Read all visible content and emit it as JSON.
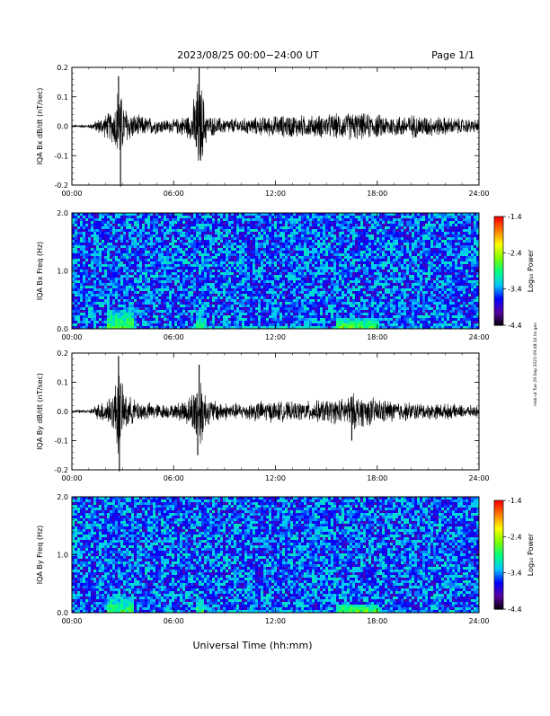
{
  "header": {
    "title": "2023/08/25  00:00−24:00 UT",
    "page": "Page 1/1"
  },
  "xlabel": "Universal Time (hh:mm)",
  "side_note": "mkk-ut Tue 29 Sep 2023 09:48:14 hs gen",
  "time_ticks": [
    "00:00",
    "06:00",
    "12:00",
    "18:00",
    "24:00"
  ],
  "colorbar": {
    "label": "Log₁₀ Power",
    "ticks": [
      "-1.4",
      "-2.4",
      "-3.4",
      "-4.4"
    ],
    "range": [
      -4.4,
      -1.4
    ],
    "colors": [
      "#000000",
      "#5a00a0",
      "#0000ff",
      "#00c8ff",
      "#00ff80",
      "#80ff00",
      "#ffff00",
      "#ff8000",
      "#ff0000"
    ]
  },
  "chart_data": [
    {
      "type": "line",
      "ylabel": "IQA Bx dB/dt (nT/sec)",
      "yticks": [
        "0.2",
        "0.1",
        "0.0",
        "-0.1",
        "-0.2"
      ],
      "ylim": [
        -0.2,
        0.2
      ],
      "xlim": [
        "00:00",
        "24:00"
      ],
      "x": [
        "00:00",
        "01:00",
        "02:00",
        "02:30",
        "02:45",
        "03:00",
        "03:30",
        "04:00",
        "05:00",
        "06:00",
        "07:00",
        "07:30",
        "08:00",
        "09:00",
        "10:00",
        "11:00",
        "12:00",
        "13:00",
        "14:00",
        "15:00",
        "16:00",
        "16:30",
        "17:00",
        "18:00",
        "19:00",
        "20:00",
        "21:00",
        "22:00",
        "23:00",
        "24:00"
      ],
      "envelope": [
        0.005,
        0.006,
        0.045,
        0.07,
        0.17,
        0.09,
        0.05,
        0.04,
        0.03,
        0.025,
        0.05,
        0.2,
        0.04,
        0.03,
        0.03,
        0.035,
        0.04,
        0.045,
        0.04,
        0.045,
        0.05,
        0.055,
        0.05,
        0.045,
        0.04,
        0.045,
        0.04,
        0.035,
        0.03,
        0.025
      ],
      "spikes": [
        {
          "x": "02:45",
          "y": 0.17
        },
        {
          "x": "02:52",
          "y": -0.21
        },
        {
          "x": "07:30",
          "y": 0.2
        },
        {
          "x": "07:20",
          "y": -0.07
        }
      ]
    },
    {
      "type": "heatmap",
      "ylabel": "IQA Bx Freq (Hz)",
      "yticks": [
        "2.0",
        "1.0",
        "0.0"
      ],
      "ylim": [
        0,
        2
      ],
      "xlim": [
        "00:00",
        "24:00"
      ],
      "background_log_power": -3.5,
      "enhancements": [
        {
          "t_start": "02:00",
          "t_end": "03:30",
          "f_max": 0.35,
          "log_power": -2.7
        },
        {
          "t_start": "07:15",
          "t_end": "07:45",
          "f_max": 0.3,
          "log_power": -2.8
        },
        {
          "t_start": "08:00",
          "t_end": "15:00",
          "f_max": 0.08,
          "log_power": -2.9
        },
        {
          "t_start": "15:30",
          "t_end": "18:00",
          "f_max": 0.2,
          "log_power": -2.6
        },
        {
          "t_start": "18:00",
          "t_end": "24:00",
          "f_max": 0.05,
          "log_power": -3.0
        }
      ]
    },
    {
      "type": "line",
      "ylabel": "IQA By dB/dt (nT/sec)",
      "yticks": [
        "0.2",
        "0.1",
        "0.0",
        "-0.1",
        "-0.2"
      ],
      "ylim": [
        -0.2,
        0.2
      ],
      "xlim": [
        "00:00",
        "24:00"
      ],
      "x": [
        "00:00",
        "01:00",
        "02:00",
        "02:30",
        "02:45",
        "03:00",
        "03:30",
        "04:00",
        "05:00",
        "06:00",
        "07:00",
        "07:30",
        "08:00",
        "09:00",
        "10:00",
        "11:00",
        "12:00",
        "13:00",
        "14:00",
        "15:00",
        "16:00",
        "16:30",
        "17:00",
        "18:00",
        "19:00",
        "20:00",
        "21:00",
        "22:00",
        "23:00",
        "24:00"
      ],
      "envelope": [
        0.005,
        0.006,
        0.05,
        0.08,
        0.19,
        0.09,
        0.05,
        0.04,
        0.03,
        0.025,
        0.06,
        0.16,
        0.05,
        0.035,
        0.03,
        0.04,
        0.04,
        0.035,
        0.04,
        0.045,
        0.05,
        0.07,
        0.06,
        0.05,
        0.04,
        0.035,
        0.03,
        0.03,
        0.025,
        0.02
      ],
      "spikes": [
        {
          "x": "02:45",
          "y": 0.19
        },
        {
          "x": "02:48",
          "y": -0.23
        },
        {
          "x": "07:30",
          "y": 0.16
        },
        {
          "x": "07:25",
          "y": -0.15
        },
        {
          "x": "16:30",
          "y": -0.1
        }
      ]
    },
    {
      "type": "heatmap",
      "ylabel": "IQA By Freq (Hz)",
      "yticks": [
        "2.0",
        "1.0",
        "0.0"
      ],
      "ylim": [
        0,
        2
      ],
      "xlim": [
        "00:00",
        "24:00"
      ],
      "background_log_power": -3.5,
      "enhancements": [
        {
          "t_start": "02:00",
          "t_end": "03:30",
          "f_max": 0.3,
          "log_power": -2.7
        },
        {
          "t_start": "07:15",
          "t_end": "07:45",
          "f_max": 0.3,
          "log_power": -2.8
        },
        {
          "t_start": "08:00",
          "t_end": "15:00",
          "f_max": 0.07,
          "log_power": -2.9
        },
        {
          "t_start": "15:30",
          "t_end": "18:00",
          "f_max": 0.18,
          "log_power": -2.6
        },
        {
          "t_start": "18:00",
          "t_end": "24:00",
          "f_max": 0.05,
          "log_power": -3.0
        }
      ]
    }
  ]
}
